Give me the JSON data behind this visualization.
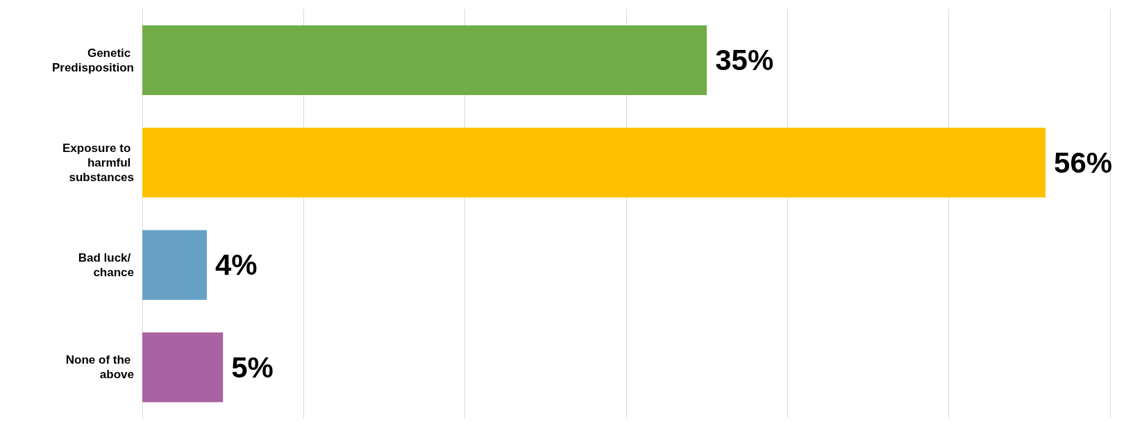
{
  "chart_data": {
    "type": "bar",
    "orientation": "horizontal",
    "categories": [
      "Genetic Predisposition",
      "Exposure to harmful substances",
      "Bad luck/ chance",
      "None of the above"
    ],
    "values": [
      35,
      56,
      4,
      5
    ],
    "colors": [
      "#70ad47",
      "#ffc000",
      "#67a2c6",
      "#a962a2"
    ],
    "value_labels": [
      "35%",
      "56%",
      "4%",
      "5%"
    ],
    "xlim": [
      0,
      60
    ],
    "xticks": [
      {
        "value": 0,
        "label": null
      },
      {
        "value": 10,
        "label": null
      },
      {
        "value": 20,
        "label": null
      },
      {
        "value": 30,
        "label": null
      },
      {
        "value": 40,
        "label": null
      },
      {
        "value": 50,
        "label": null
      },
      {
        "value": 60,
        "label": null
      }
    ],
    "grid": "x",
    "tick_labels": "y"
  }
}
